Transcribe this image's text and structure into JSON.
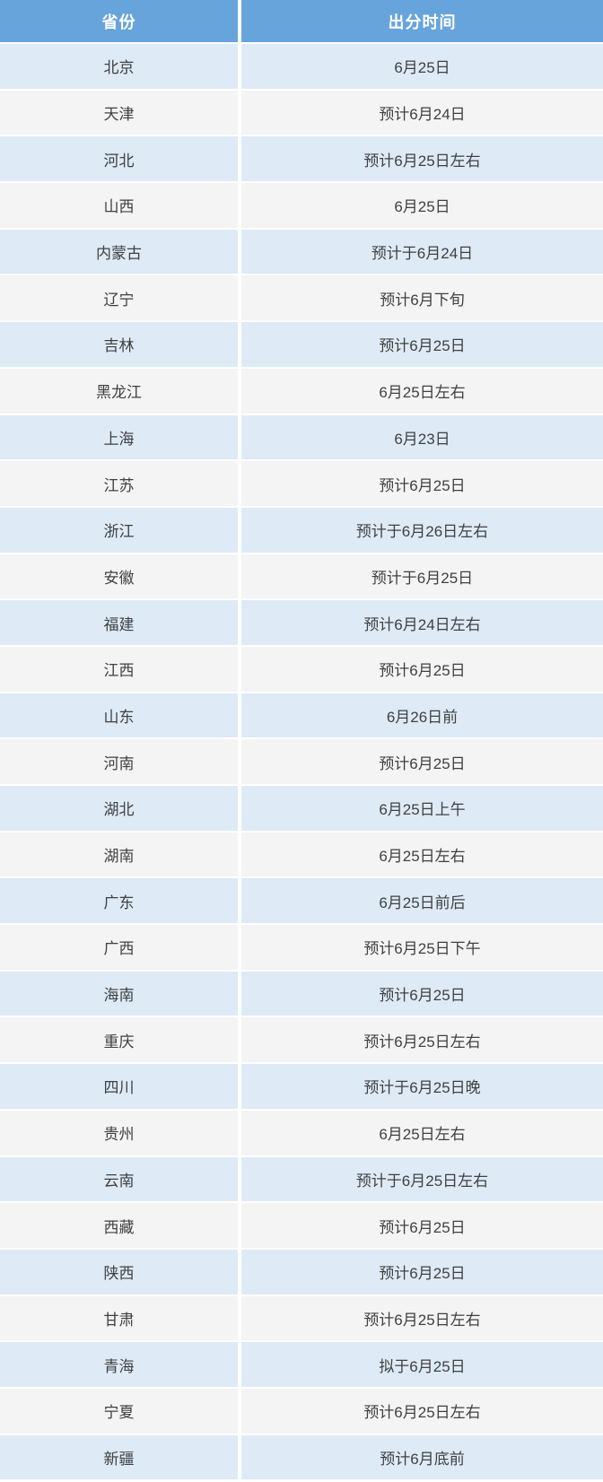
{
  "table": {
    "columns": [
      {
        "label": "省份"
      },
      {
        "label": "出分时间"
      }
    ],
    "rows": [
      {
        "province": "北京",
        "time": "6月25日"
      },
      {
        "province": "天津",
        "time": "预计6月24日"
      },
      {
        "province": "河北",
        "time": "预计6月25日左右"
      },
      {
        "province": "山西",
        "time": "6月25日"
      },
      {
        "province": "内蒙古",
        "time": "预计于6月24日"
      },
      {
        "province": "辽宁",
        "time": "预计6月下旬"
      },
      {
        "province": "吉林",
        "time": "预计6月25日"
      },
      {
        "province": "黑龙江",
        "time": "6月25日左右"
      },
      {
        "province": "上海",
        "time": "6月23日"
      },
      {
        "province": "江苏",
        "time": "预计6月25日"
      },
      {
        "province": "浙江",
        "time": "预计于6月26日左右"
      },
      {
        "province": "安徽",
        "time": "预计于6月25日"
      },
      {
        "province": "福建",
        "time": "预计6月24日左右"
      },
      {
        "province": "江西",
        "time": "预计6月25日"
      },
      {
        "province": "山东",
        "time": "6月26日前"
      },
      {
        "province": "河南",
        "time": "预计6月25日"
      },
      {
        "province": "湖北",
        "time": "6月25日上午"
      },
      {
        "province": "湖南",
        "time": "6月25日左右"
      },
      {
        "province": "广东",
        "time": "6月25日前后"
      },
      {
        "province": "广西",
        "time": "预计6月25日下午"
      },
      {
        "province": "海南",
        "time": "预计6月25日"
      },
      {
        "province": "重庆",
        "time": "预计6月25日左右"
      },
      {
        "province": "四川",
        "time": "预计于6月25日晚"
      },
      {
        "province": "贵州",
        "time": "6月25日左右"
      },
      {
        "province": "云南",
        "time": "预计于6月25日左右"
      },
      {
        "province": "西藏",
        "time": "预计6月25日"
      },
      {
        "province": "陕西",
        "time": "预计6月25日"
      },
      {
        "province": "甘肃",
        "time": "预计6月25日左右"
      },
      {
        "province": "青海",
        "time": "拟于6月25日"
      },
      {
        "province": "宁夏",
        "time": "预计6月25日左右"
      },
      {
        "province": "新疆",
        "time": "预计6月底前"
      }
    ]
  },
  "colors": {
    "header_bg": "#68A4DC",
    "header_text": "#FFFFFF",
    "row_blue": "#DEEAF6",
    "row_gray": "#F4F4F4",
    "body_text": "#404040",
    "divider": "#FFFFFF"
  }
}
